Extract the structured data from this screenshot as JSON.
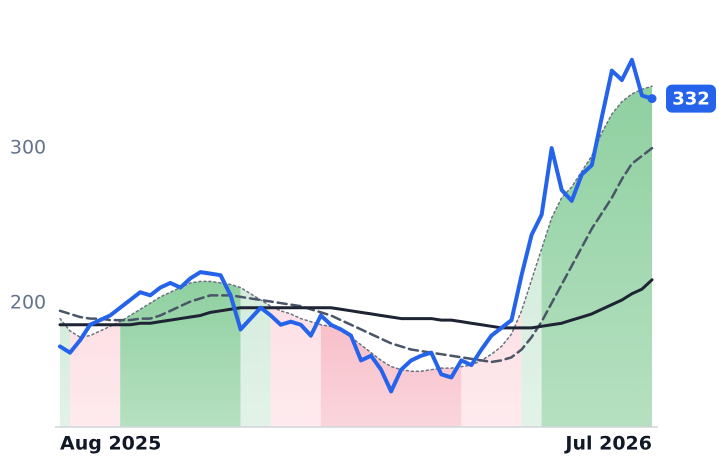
{
  "chart_data": {
    "type": "line",
    "xlim": [
      0,
      59
    ],
    "xticks": [
      {
        "value": 0,
        "label": "Aug 2025"
      },
      {
        "value": 59,
        "label": "Jul 2026"
      }
    ],
    "ylim": [
      120,
      395
    ],
    "yticks": [
      200,
      300
    ],
    "grid": false,
    "bands": [
      {
        "start": 0,
        "end": 1,
        "color": "#d4ecdc"
      },
      {
        "start": 1,
        "end": 6,
        "color": "#fde0e5"
      },
      {
        "start": 6,
        "end": 18,
        "color": "#8fd0a0"
      },
      {
        "start": 18,
        "end": 21,
        "color": "#d4ecdc"
      },
      {
        "start": 21,
        "end": 26,
        "color": "#fde0e5"
      },
      {
        "start": 26,
        "end": 40,
        "color": "#f8bfca"
      },
      {
        "start": 40,
        "end": 46,
        "color": "#fde0e5"
      },
      {
        "start": 46,
        "end": 48,
        "color": "#d4ecdc"
      },
      {
        "start": 48,
        "end": 59,
        "color": "#8fd0a0"
      }
    ],
    "band_series": 3,
    "label_last": 0,
    "series": [
      {
        "color": "#2563eb",
        "style": "solid",
        "line_width": 4,
        "values": [
          172,
          168,
          176,
          186,
          189,
          192,
          197,
          202,
          207,
          205,
          210,
          213,
          210,
          216,
          220,
          219,
          218,
          205,
          183,
          190,
          197,
          192,
          186,
          188,
          186,
          179,
          192,
          186,
          183,
          179,
          163,
          166,
          157,
          143,
          157,
          163,
          166,
          168,
          154,
          152,
          163,
          160,
          170,
          179,
          184,
          189,
          218,
          244,
          257,
          300,
          273,
          266,
          283,
          289,
          320,
          350,
          344,
          357,
          334,
          332
        ]
      },
      {
        "color": "#1e2433",
        "style": "solid",
        "line_width": 3,
        "values": [
          186,
          186,
          186,
          186,
          186,
          186,
          186,
          186,
          187,
          187,
          188,
          189,
          190,
          191,
          192,
          194,
          195,
          196,
          197,
          197,
          197,
          197,
          197,
          197,
          197,
          197,
          197,
          197,
          196,
          195,
          194,
          193,
          192,
          191,
          190,
          190,
          190,
          190,
          189,
          189,
          188,
          187,
          186,
          185,
          184,
          184,
          184,
          184,
          185,
          186,
          187,
          189,
          191,
          193,
          196,
          199,
          202,
          206,
          209,
          215
        ]
      },
      {
        "color": "#4a5568",
        "style": "dashed",
        "line_width": 2.5,
        "values": [
          195,
          193,
          191,
          190,
          190,
          189,
          189,
          189,
          190,
          190,
          192,
          195,
          198,
          201,
          203,
          205,
          205,
          205,
          204,
          203,
          202,
          201,
          200,
          199,
          198,
          196,
          194,
          192,
          189,
          186,
          183,
          180,
          177,
          174,
          172,
          170,
          169,
          168,
          167,
          166,
          165,
          164,
          163,
          162,
          163,
          165,
          170,
          178,
          188,
          200,
          212,
          224,
          236,
          248,
          258,
          268,
          280,
          290,
          295,
          300
        ]
      },
      {
        "color": "#6b7280",
        "style": "dotted",
        "line_width": 1.5,
        "values": [
          190,
          182,
          178,
          179,
          182,
          185,
          188,
          192,
          196,
          200,
          204,
          207,
          210,
          213,
          214,
          214,
          213,
          212,
          210,
          206,
          202,
          198,
          195,
          193,
          190,
          188,
          186,
          185,
          182,
          178,
          173,
          168,
          163,
          159,
          157,
          156,
          156,
          157,
          158,
          158,
          159,
          160,
          163,
          167,
          172,
          180,
          195,
          215,
          235,
          255,
          268,
          275,
          285,
          295,
          310,
          322,
          330,
          335,
          338,
          340
        ]
      }
    ]
  }
}
